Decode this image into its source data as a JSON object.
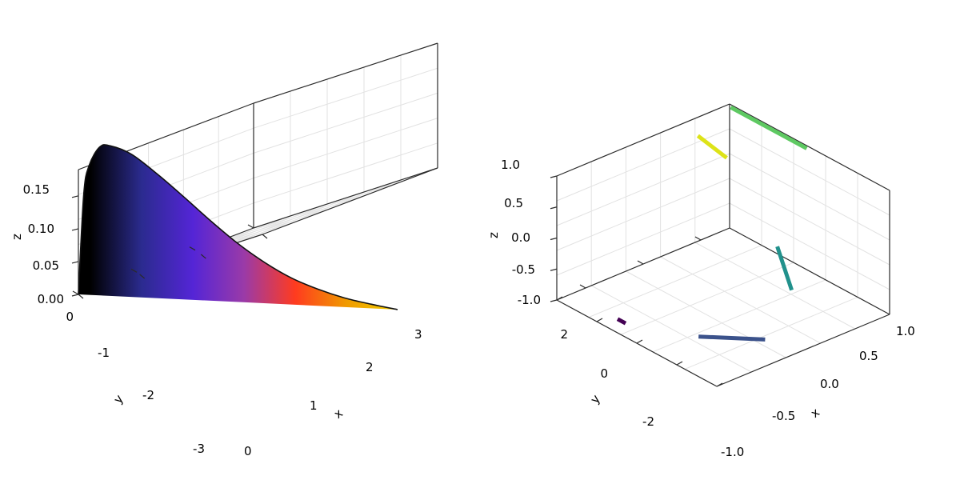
{
  "chart_data": [
    {
      "type": "surface",
      "title": "",
      "xlabel": "x",
      "ylabel": "y",
      "zlabel": "z",
      "xlim": [
        0,
        3
      ],
      "ylim": [
        -3,
        0
      ],
      "zlim": [
        0,
        0.19
      ],
      "x_ticks": [
        "0",
        "1",
        "2",
        "3"
      ],
      "y_ticks": [
        "0",
        "-1",
        "-2",
        "-3"
      ],
      "z_ticks": [
        "0.00",
        "0.05",
        "0.10",
        "0.15"
      ],
      "curve": {
        "x": [
          0,
          0.05,
          0.1,
          0.2,
          0.3,
          0.5,
          0.75,
          1.0,
          1.25,
          1.5,
          1.75,
          2.0,
          2.25,
          2.5,
          2.75,
          3.0
        ],
        "z": [
          0,
          0.12,
          0.155,
          0.178,
          0.18,
          0.171,
          0.148,
          0.122,
          0.095,
          0.07,
          0.049,
          0.032,
          0.02,
          0.011,
          0.005,
          0.0
        ]
      },
      "colormap": [
        "#000000",
        "#2b2b8f",
        "#5425d6",
        "#9a3aa8",
        "#ff3b1f",
        "#f09a00",
        "#f2d000"
      ],
      "grid": true
    },
    {
      "type": "line3d",
      "title": "",
      "xlabel": "x",
      "ylabel": "y",
      "zlabel": "z",
      "xlim": [
        -1.0,
        1.0
      ],
      "ylim": [
        -3,
        3
      ],
      "zlim": [
        -1.0,
        1.0
      ],
      "x_ticks": [
        "-1.0",
        "-0.5",
        "0.0",
        "0.5",
        "1.0"
      ],
      "y_ticks": [
        "2",
        "0",
        "-2"
      ],
      "z_ticks": [
        "1.0",
        "0.5",
        "0.0",
        "-0.5",
        "-1.0"
      ],
      "segments": [
        {
          "color": "#440154",
          "from": [
            -0.42,
            -2.5,
            -1.0
          ],
          "to": [
            -0.32,
            -2.5,
            -1.0
          ]
        },
        {
          "color": "#3b528b",
          "from": [
            0.25,
            -1.55,
            -1.0
          ],
          "to": [
            0.65,
            -0.35,
            -1.0
          ]
        },
        {
          "color": "#21918c",
          "from": [
            1.0,
            -0.9,
            0.85
          ],
          "to": [
            1.0,
            -0.4,
            0.05
          ]
        },
        {
          "color": "#5ec962",
          "from": [
            -0.95,
            2.9,
            1.0
          ],
          "to": [
            0.0,
            2.9,
            1.0
          ]
        },
        {
          "color": "#dde318",
          "from": [
            -1.0,
            2.9,
            0.15
          ],
          "to": [
            -1.0,
            1.9,
            0.7
          ]
        }
      ],
      "grid": true
    }
  ]
}
